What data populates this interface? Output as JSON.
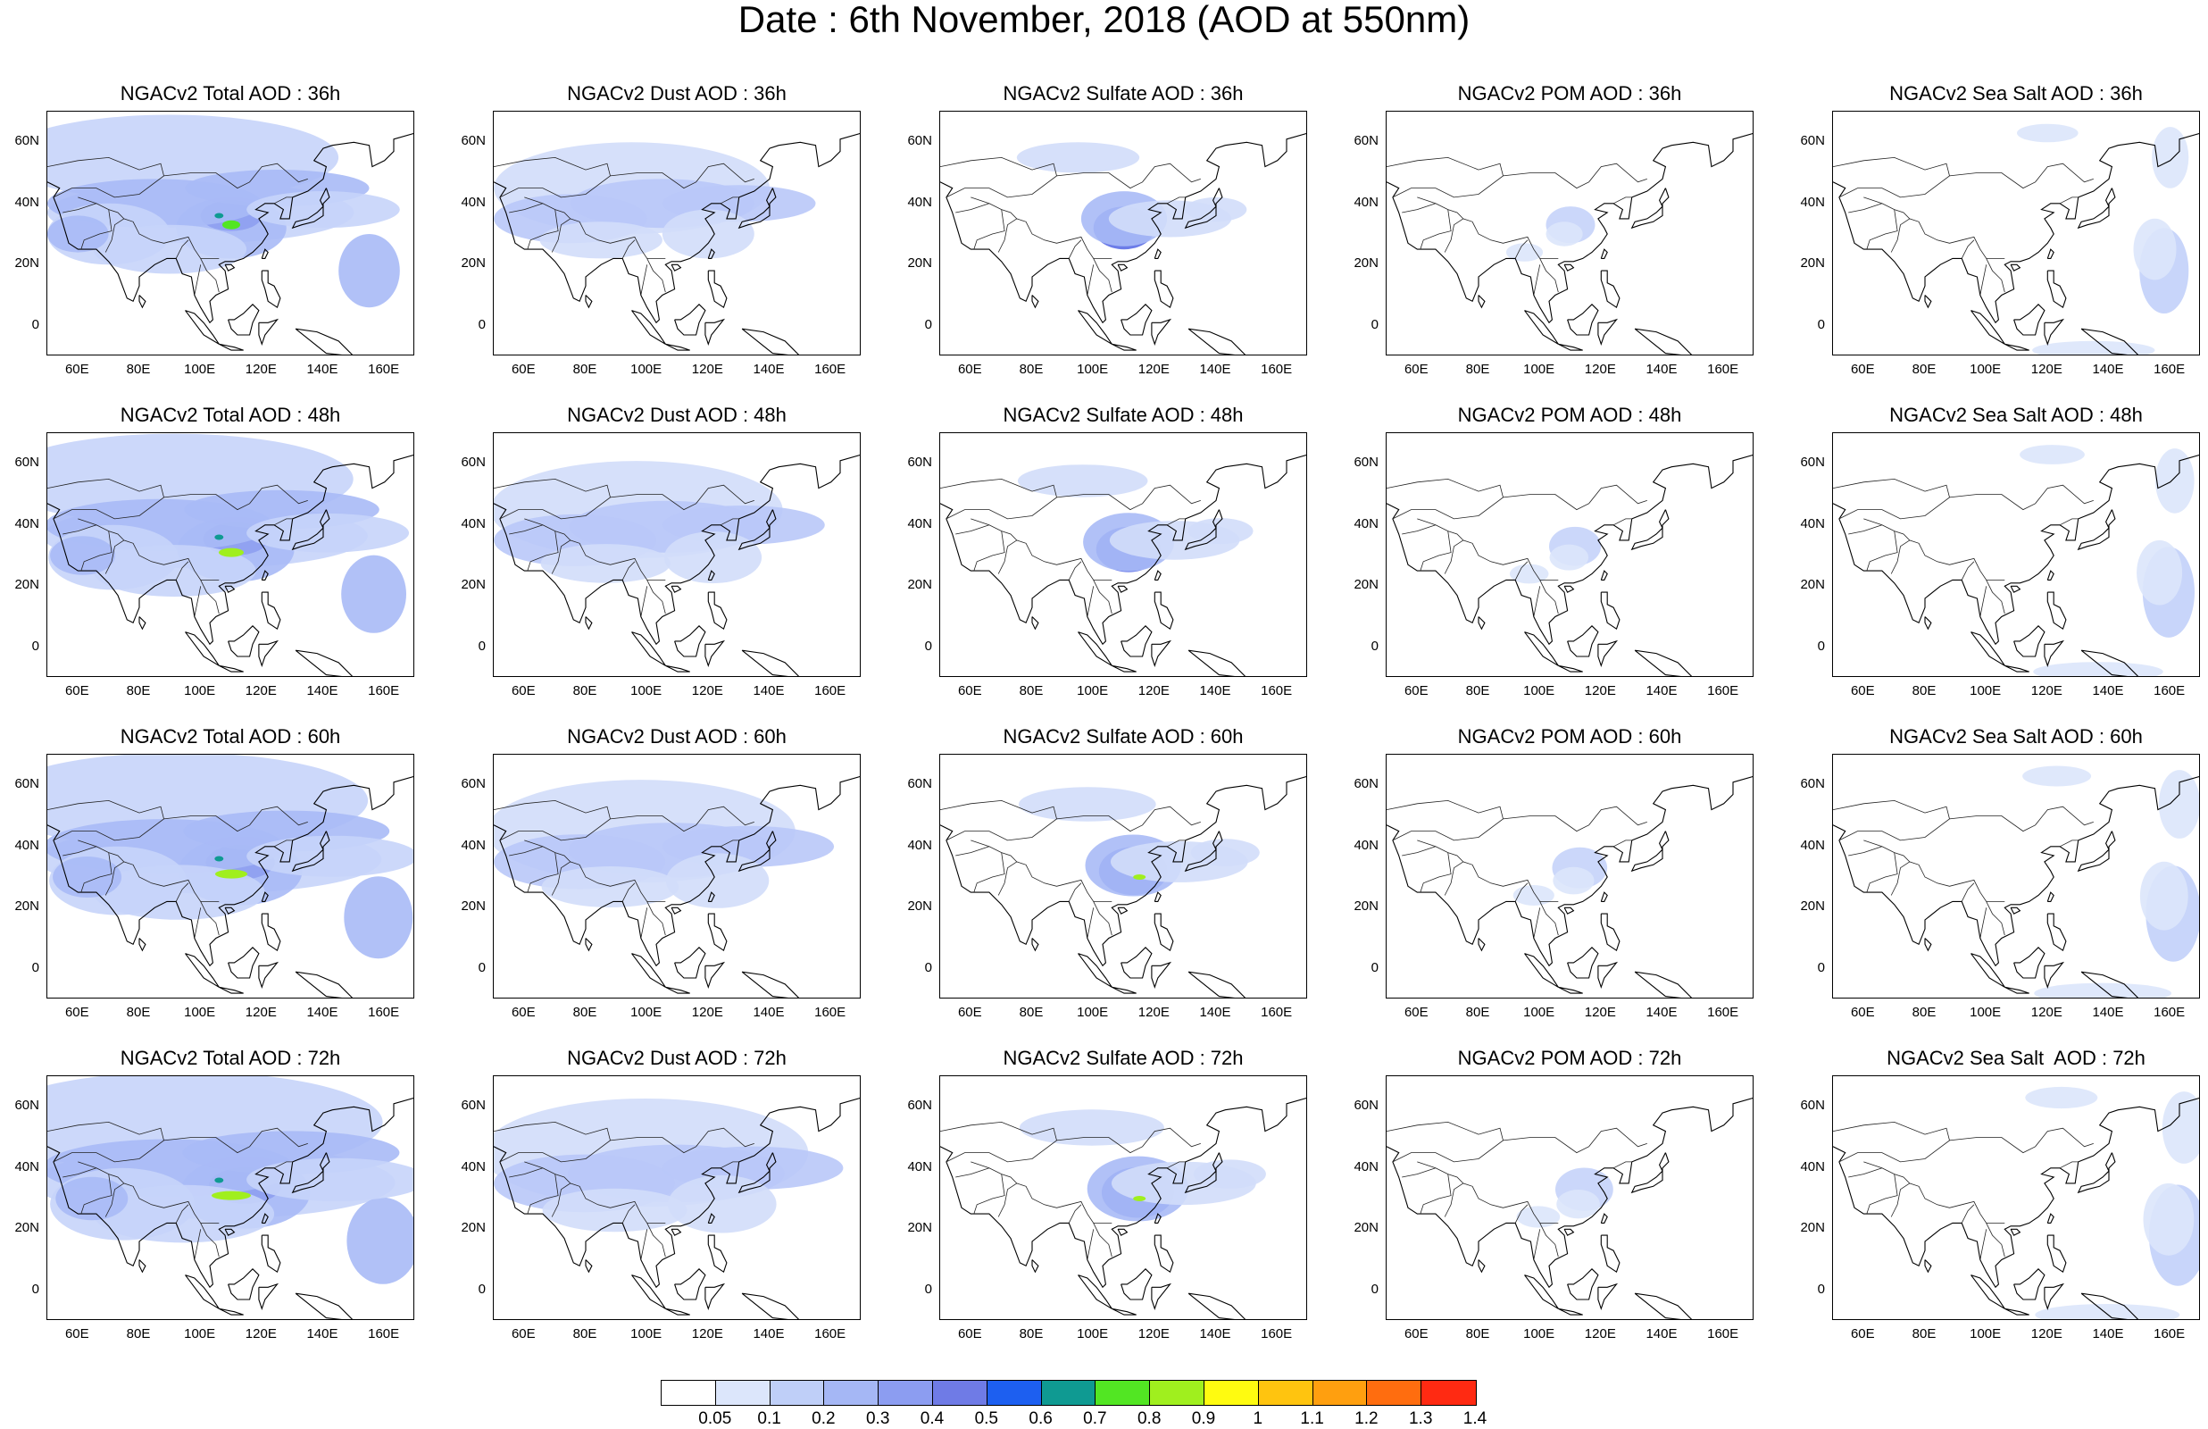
{
  "main_title": "Date : 6th November, 2018 (AOD at 550nm)",
  "panel_titles": [
    [
      "NGACv2 Total AOD : 36h",
      "NGACv2 Dust AOD : 36h",
      "NGACv2 Sulfate AOD : 36h",
      "NGACv2 POM AOD : 36h",
      "NGACv2 Sea Salt AOD : 36h"
    ],
    [
      "NGACv2 Total AOD : 48h",
      "NGACv2 Dust AOD : 48h",
      "NGACv2 Sulfate AOD : 48h",
      "NGACv2 POM AOD : 48h",
      "NGACv2 Sea Salt AOD : 48h"
    ],
    [
      "NGACv2 Total AOD : 60h",
      "NGACv2 Dust AOD : 60h",
      "NGACv2 Sulfate AOD : 60h",
      "NGACv2 POM AOD : 60h",
      "NGACv2 Sea Salt AOD : 60h"
    ],
    [
      "NGACv2 Total AOD : 72h",
      "NGACv2 Dust AOD : 72h",
      "NGACv2 Sulfate AOD : 72h",
      "NGACv2 POM AOD : 72h",
      "NGACv2 Sea Salt  AOD : 72h"
    ]
  ],
  "lat_labels": [
    "60N",
    "40N",
    "20N",
    "0"
  ],
  "lon_labels": [
    "60E",
    "80E",
    "100E",
    "120E",
    "140E",
    "160E"
  ],
  "colorbar": {
    "labels": [
      "0.05",
      "0.1",
      "0.2",
      "0.3",
      "0.4",
      "0.5",
      "0.6",
      "0.7",
      "0.8",
      "0.9",
      "1",
      "1.1",
      "1.2",
      "1.3",
      "1.4"
    ],
    "colors": [
      "#ffffff",
      "#dce6fb",
      "#bfcff8",
      "#a5b7f5",
      "#8c9df1",
      "#6f7be6",
      "#1d5ff0",
      "#0f9a92",
      "#52e623",
      "#a0ef1e",
      "#fffb10",
      "#ffc40f",
      "#ff9f0f",
      "#ff6d0f",
      "#ff2a12"
    ]
  },
  "species_palette": {
    "total": [
      "#c7d4fa",
      "#a9baf6",
      "#8e9ff0"
    ],
    "dust": [
      "#d2ddfa",
      "#b9c8f8",
      "#a1b3f4"
    ],
    "sulfate": [
      "#d2ddfa",
      "#a9baf6",
      "#5c6ee6"
    ],
    "pom": [
      "#dce6fb",
      "#c5d3f9",
      "#aebff6"
    ],
    "seasalt": [
      "#dce6fb",
      "#c2d0f9",
      "#8b9df0"
    ]
  }
}
